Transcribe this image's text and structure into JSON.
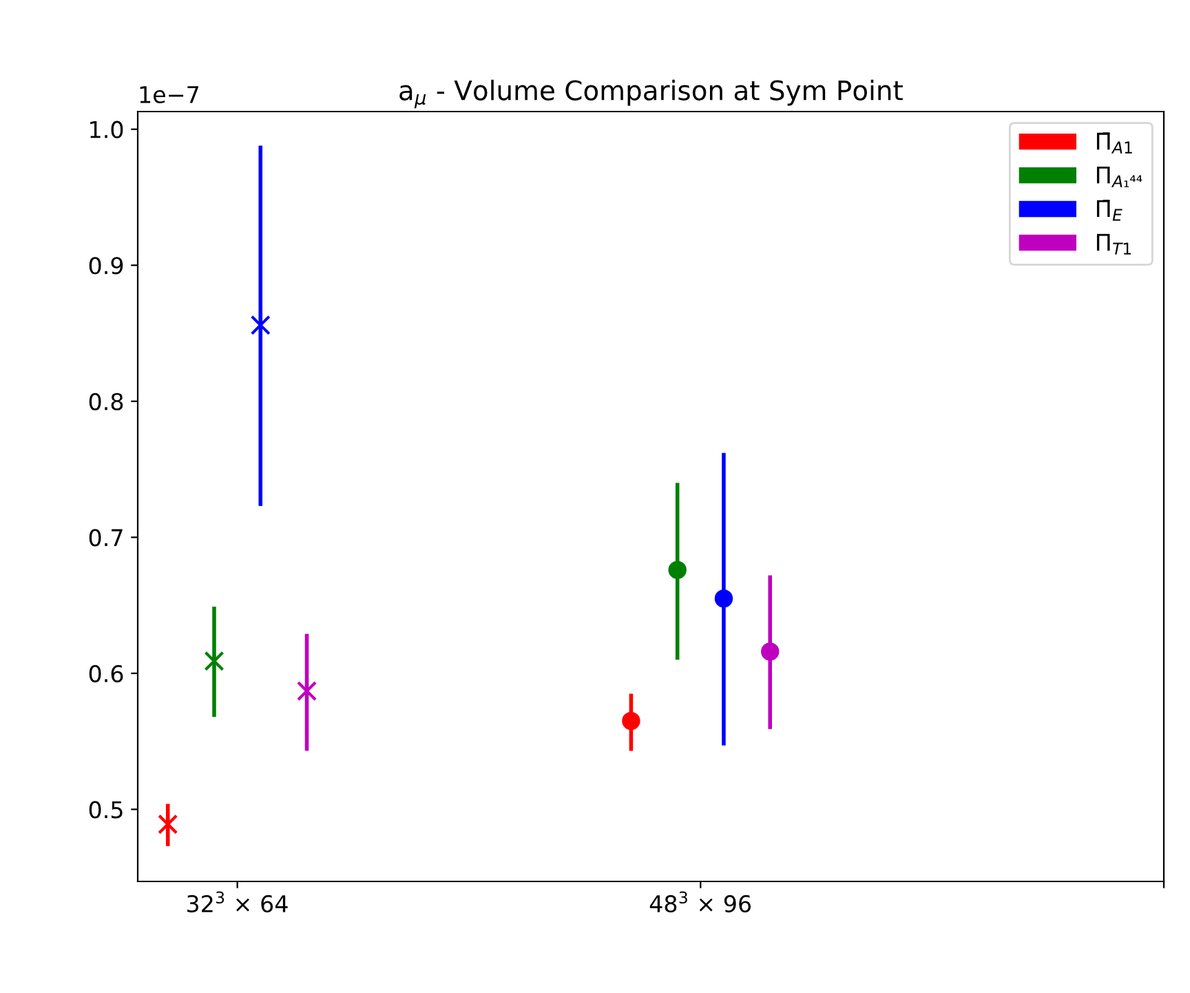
{
  "chart_data": {
    "type": "scatter",
    "title": "a$_{μ}$ - Volume Comparison at Sym Point",
    "annotations": [
      "1e−7"
    ],
    "categories": [
      "32$^{3}$ × 64",
      "48$^{3}$ × 96",
      null
    ],
    "ylim": [
      0.447,
      1.013
    ],
    "yticks": [
      {
        "value": 0.5,
        "label": "0.5"
      },
      {
        "value": 0.6,
        "label": "0.6"
      },
      {
        "value": 0.7,
        "label": "0.7"
      },
      {
        "value": 0.8,
        "label": "0.8"
      },
      {
        "value": 0.9,
        "label": "0.9"
      },
      {
        "value": 1.0,
        "label": "1.0"
      }
    ],
    "grid": false,
    "legend": "top right",
    "series": [
      {
        "name": "Π̄$_{A1}$",
        "color": "#ff0000",
        "marker": "cross",
        "values": [
          0.489,
          null,
          null
        ],
        "errors": [
          [
            0.473,
            0.504
          ],
          null,
          null
        ]
      },
      {
        "name": "Π$_{A₁⁴⁴}$",
        "color": "#008000",
        "marker": "cross",
        "values": [
          0.609,
          null,
          null
        ],
        "errors": [
          [
            0.568,
            0.649
          ],
          null,
          null
        ]
      },
      {
        "name": "Π̄$_{E}$",
        "color": "#0000ff",
        "marker": "cross",
        "values": [
          0.856,
          null,
          null
        ],
        "errors": [
          [
            0.723,
            0.988
          ],
          null,
          null
        ]
      },
      {
        "name": "Π$_{T1}$",
        "color": "#bf00bf",
        "marker": "cross",
        "values": [
          0.587,
          null,
          null
        ],
        "errors": [
          [
            0.543,
            0.629
          ],
          null,
          null
        ]
      },
      {
        "color": "#ff0000",
        "marker": "circle",
        "values": [
          null,
          0.565,
          null
        ],
        "errors": [
          null,
          [
            0.543,
            0.585
          ],
          null
        ]
      },
      {
        "color": "#008000",
        "marker": "circle",
        "values": [
          null,
          0.676,
          null
        ],
        "errors": [
          null,
          [
            0.61,
            0.74
          ],
          null
        ]
      },
      {
        "color": "#0000ff",
        "marker": "circle",
        "values": [
          null,
          0.655,
          null
        ],
        "errors": [
          null,
          [
            0.547,
            0.762
          ],
          null
        ]
      },
      {
        "color": "#bf00bf",
        "marker": "circle",
        "values": [
          null,
          0.616,
          null
        ],
        "errors": [
          null,
          [
            0.559,
            0.672
          ],
          null
        ]
      }
    ]
  }
}
